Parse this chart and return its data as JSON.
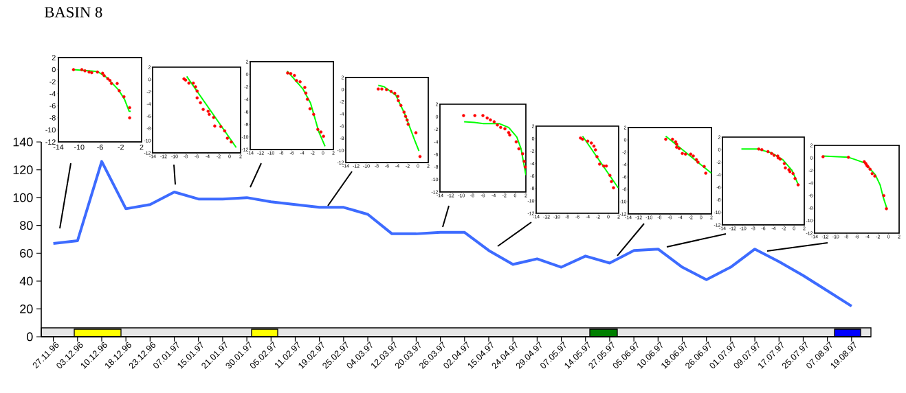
{
  "chart_data": [
    {
      "type": "other",
      "title": "BASIN 8"
    },
    {
      "type": "line",
      "color": "#3d6bff",
      "grid": false,
      "categories": [
        "27.11.96",
        "03.12.96",
        "10.12.96",
        "18.12.96",
        "23.12.96",
        "07.01.97",
        "15.01.97",
        "21.01.97",
        "30.01.97",
        "05.02.97",
        "11.02.97",
        "19.02.97",
        "25.02.97",
        "04.03.97",
        "12.03.97",
        "20.03.97",
        "26.03.97",
        "02.04.97",
        "15.04.97",
        "24.04.97",
        "29.04.97",
        "07.05.97",
        "14.05.97",
        "27.05.97",
        "05.06.97",
        "10.06.97",
        "18.06.97",
        "26.06.97",
        "01.07.97",
        "09.07.97",
        "17.07.97",
        "25.07.97",
        "07.08.97",
        "19.08.97"
      ],
      "values": [
        67,
        69,
        126,
        92,
        95,
        104,
        99,
        99,
        100,
        97,
        95,
        93,
        93,
        88,
        74,
        74,
        75,
        75,
        62,
        52,
        56,
        50,
        58,
        53,
        62,
        63,
        50,
        41,
        50,
        63,
        54,
        44,
        33,
        22
      ],
      "ylim": [
        0,
        140
      ],
      "yticks": [
        0,
        20,
        40,
        60,
        80,
        100,
        120,
        140
      ]
    },
    {
      "type": "scatter",
      "xlim": [
        -14,
        2
      ],
      "ylim": [
        -12,
        2
      ],
      "xticks": [
        -14,
        -10,
        -6,
        -2,
        2
      ],
      "yticks": [
        2,
        0,
        -2,
        -4,
        -6,
        -8,
        -10,
        -12
      ],
      "series": [
        {
          "type": "scatter",
          "marker": "circle",
          "color": "#ff0000",
          "x": [
            -11.1,
            -9.5,
            -8.9,
            -8.1,
            -7.6,
            -6.5,
            -5.5,
            -5.2,
            -4.5,
            -4.1,
            -3.8,
            -2.7,
            -2.3,
            -1.4,
            -0.3,
            -0.3
          ],
          "values": [
            0.0,
            0.0,
            -0.2,
            -0.4,
            -0.5,
            -0.4,
            -0.6,
            -1.0,
            -1.5,
            -1.8,
            -2.3,
            -2.3,
            -3.5,
            -4.5,
            -6.3,
            -8.0
          ]
        },
        {
          "type": "line",
          "color": "#00ff00",
          "x": [
            -11.1,
            -6.5,
            -4.7,
            -2.4,
            -1.3,
            -0.4,
            -0.1
          ],
          "values": [
            0.0,
            -0.3,
            -1.3,
            -3.4,
            -4.9,
            -6.9,
            -6.9
          ]
        }
      ]
    },
    {
      "type": "scatter",
      "xlim": [
        -14,
        2
      ],
      "ylim": [
        -12,
        2
      ],
      "xticks": [
        -14,
        -12,
        -10,
        -8,
        -6,
        -4,
        -2,
        0,
        2
      ],
      "yticks": [
        2,
        0,
        -2,
        -4,
        -6,
        -8,
        -10,
        -12
      ],
      "series": [
        {
          "type": "scatter",
          "marker": "circle",
          "color": "#ff0000",
          "x": [
            -8.3,
            -8.0,
            -7.4,
            -6.6,
            -6.2,
            -5.9,
            -5.9,
            -5.3,
            -4.8,
            -3.9,
            -3.7,
            -2.9,
            -2.7,
            -1.6,
            -0.9,
            -0.4,
            0.3
          ],
          "values": [
            0.1,
            -0.1,
            -0.6,
            -0.6,
            -1.2,
            -1.9,
            -3.0,
            -3.8,
            -4.9,
            -5.2,
            -5.7,
            -6.2,
            -7.6,
            -7.7,
            -8.4,
            -9.6,
            -10.2
          ]
        },
        {
          "type": "line",
          "color": "#00ff00",
          "x": [
            -7.8,
            1.2
          ],
          "values": [
            0.5,
            -11.1
          ]
        }
      ]
    },
    {
      "type": "scatter",
      "xlim": [
        -14,
        2
      ],
      "ylim": [
        -12,
        2
      ],
      "xticks": [
        -14,
        -12,
        -10,
        -8,
        -6,
        -4,
        -2,
        0,
        2
      ],
      "yticks": [
        2,
        0,
        -2,
        -4,
        -6,
        -8,
        -10,
        -12
      ],
      "series": [
        {
          "type": "scatter",
          "marker": "circle",
          "color": "#ff0000",
          "x": [
            -6.8,
            -6.2,
            -5.5,
            -5.1,
            -4.4,
            -3.5,
            -3.3,
            -3.0,
            -2.5,
            -1.8,
            -1.0,
            -0.4,
            0.1
          ],
          "values": [
            0.2,
            0.1,
            -0.2,
            -1.0,
            -1.2,
            -2.1,
            -3.0,
            -4.0,
            -5.5,
            -6.4,
            -8.8,
            -9.2,
            -9.9
          ]
        },
        {
          "type": "line",
          "color": "#00ff00",
          "x": [
            -6.9,
            -3.9,
            -2.4,
            -0.8,
            0.4
          ],
          "values": [
            0.5,
            -2.3,
            -4.6,
            -9.2,
            -11.5
          ]
        }
      ]
    },
    {
      "type": "scatter",
      "xlim": [
        -14,
        2
      ],
      "ylim": [
        -12,
        2
      ],
      "xticks": [
        -14,
        -12,
        -10,
        -8,
        -6,
        -4,
        -2,
        0,
        2
      ],
      "yticks": [
        2,
        0,
        -2,
        -4,
        -6,
        -8,
        -10,
        -12
      ],
      "series": [
        {
          "type": "scatter",
          "marker": "circle",
          "color": "#ff0000",
          "x": [
            -7.7,
            -7.0,
            -6.1,
            -5.2,
            -4.5,
            -3.9,
            -3.8,
            -3.3,
            -2.7,
            -2.4,
            -2.1,
            -1.9,
            -0.4,
            0.4
          ],
          "values": [
            0.1,
            0.1,
            0.0,
            -0.3,
            -0.6,
            -1.1,
            -1.8,
            -2.6,
            -3.7,
            -4.4,
            -5.0,
            -5.7,
            -7.1,
            -11.0
          ]
        },
        {
          "type": "line",
          "color": "#00ff00",
          "x": [
            -7.7,
            -6.6,
            -4.3,
            -2.5,
            -0.6,
            0.2
          ],
          "values": [
            0.7,
            0.5,
            -0.9,
            -4.1,
            -8.4,
            -10.1
          ]
        }
      ]
    },
    {
      "type": "scatter",
      "xlim": [
        -14,
        2
      ],
      "ylim": [
        -12,
        2
      ],
      "xticks": [
        -14,
        -12,
        -10,
        -8,
        -6,
        -4,
        -2,
        0,
        2
      ],
      "yticks": [
        2,
        0,
        -2,
        -4,
        -6,
        -8,
        -10,
        -12
      ],
      "series": [
        {
          "type": "scatter",
          "marker": "circle",
          "color": "#ff0000",
          "x": [
            -9.6,
            -7.5,
            -6.0,
            -5.2,
            -4.6,
            -3.9,
            -3.3,
            -2.7,
            -1.9,
            -1.2,
            -1.0,
            0.2,
            0.7,
            1.4,
            1.7,
            1.9
          ],
          "values": [
            0.2,
            0.2,
            0.2,
            -0.2,
            -0.5,
            -0.8,
            -1.3,
            -1.7,
            -1.9,
            -2.5,
            -2.9,
            -4.0,
            -5.1,
            -5.9,
            -7.1,
            -8.0
          ]
        },
        {
          "type": "line",
          "color": "#00ff00",
          "x": [
            -9.5,
            -7.6,
            -5.9,
            -2.9,
            -1.2,
            0.3,
            1.1,
            2.0
          ],
          "values": [
            -0.8,
            -0.9,
            -1.1,
            -1.1,
            -1.7,
            -3.2,
            -5.1,
            -9.3
          ]
        }
      ]
    },
    {
      "type": "scatter",
      "xlim": [
        -14,
        2
      ],
      "ylim": [
        -12,
        2
      ],
      "xticks": [
        -14,
        -12,
        -10,
        -8,
        -6,
        -4,
        -2,
        0,
        2
      ],
      "yticks": [
        2,
        0,
        -2,
        -4,
        -6,
        -8,
        -10,
        -12
      ],
      "series": [
        {
          "type": "scatter",
          "marker": "circle",
          "color": "#ff0000",
          "x": [
            -5.4,
            -5.0,
            -4.0,
            -3.3,
            -2.8,
            -2.5,
            -2.2,
            -1.7,
            -0.9,
            -0.4,
            0.3,
            0.6,
            1.0
          ],
          "values": [
            0.1,
            -0.1,
            -0.4,
            -0.7,
            -1.2,
            -1.8,
            -2.9,
            -4.1,
            -4.4,
            -4.4,
            -5.9,
            -6.9,
            -7.9
          ]
        },
        {
          "type": "line",
          "color": "#00ff00",
          "x": [
            -5.0,
            1.9
          ],
          "values": [
            0.4,
            -7.9
          ]
        }
      ]
    },
    {
      "type": "scatter",
      "xlim": [
        -14,
        2
      ],
      "ylim": [
        -12,
        2
      ],
      "xticks": [
        -14,
        -12,
        -10,
        -8,
        -6,
        -4,
        -2,
        0,
        2
      ],
      "yticks": [
        2,
        0,
        -2,
        -4,
        -6,
        -8,
        -10,
        -12
      ],
      "series": [
        {
          "type": "scatter",
          "marker": "circle",
          "color": "#ff0000",
          "x": [
            -6.8,
            -5.5,
            -4.9,
            -4.7,
            -4.7,
            -4.2,
            -3.6,
            -3.0,
            -2.0,
            -1.5,
            -0.9,
            -0.6,
            0.6,
            0.9
          ],
          "values": [
            0.1,
            0.1,
            -0.3,
            -0.7,
            -1.2,
            -1.4,
            -2.2,
            -2.3,
            -2.3,
            -2.6,
            -3.2,
            -3.6,
            -4.3,
            -5.4
          ]
        },
        {
          "type": "line",
          "color": "#00ff00",
          "x": [
            -6.8,
            2.0
          ],
          "values": [
            0.6,
            -5.4
          ]
        }
      ]
    },
    {
      "type": "scatter",
      "xlim": [
        -14,
        2
      ],
      "ylim": [
        -12,
        2
      ],
      "xticks": [
        -14,
        -12,
        -10,
        -8,
        -6,
        -4,
        -2,
        0,
        2
      ],
      "yticks": [
        2,
        0,
        -2,
        -4,
        -6,
        -8,
        -10,
        -12
      ],
      "series": [
        {
          "type": "scatter",
          "marker": "circle",
          "color": "#ff0000",
          "x": [
            -6.9,
            -6.3,
            -5.1,
            -4.4,
            -3.9,
            -3.2,
            -3.1,
            -2.7,
            -1.9,
            -1.7,
            -1.0,
            -0.8,
            -0.2,
            0.2,
            0.8
          ],
          "values": [
            0.1,
            0.0,
            -0.3,
            -0.6,
            -0.9,
            -1.0,
            -1.3,
            -1.5,
            -2.2,
            -2.9,
            -3.2,
            -3.5,
            -3.8,
            -4.6,
            -5.6
          ]
        },
        {
          "type": "line",
          "color": "#00ff00",
          "x": [
            -10.3,
            -7.1,
            -4.4,
            -2.2,
            -0.4,
            0.9
          ],
          "values": [
            0.1,
            0.1,
            -0.5,
            -1.6,
            -3.3,
            -5.7
          ]
        }
      ]
    },
    {
      "type": "scatter",
      "xlim": [
        -14,
        2
      ],
      "ylim": [
        -12,
        2
      ],
      "xticks": [
        -14,
        -12,
        -10,
        -8,
        -6,
        -4,
        -2,
        0,
        2
      ],
      "yticks": [
        2,
        0,
        -2,
        -4,
        -6,
        -8,
        -10,
        -12
      ],
      "series": [
        {
          "type": "scatter",
          "marker": "circle",
          "color": "#ff0000",
          "x": [
            -12.4,
            -7.6,
            -4.6,
            -4.3,
            -4.1,
            -3.9,
            -3.5,
            -3.1,
            -2.6,
            -0.9,
            -0.4
          ],
          "values": [
            0.2,
            0.1,
            -0.6,
            -0.9,
            -1.2,
            -1.4,
            -1.8,
            -2.5,
            -2.9,
            -6.0,
            -8.1
          ]
        },
        {
          "type": "line",
          "color": "#00ff00",
          "x": [
            -12.4,
            -7.6,
            -6.5,
            -4.5,
            -2.5,
            -1.6,
            -1.0,
            -0.3
          ],
          "values": [
            0.3,
            0.1,
            -0.2,
            -0.8,
            -2.7,
            -4.3,
            -6.3,
            -8.1
          ]
        }
      ]
    }
  ]
}
